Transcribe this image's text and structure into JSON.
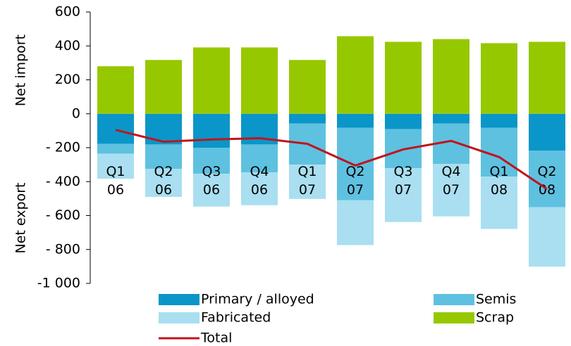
{
  "chart_data": {
    "type": "stacked_bar_line",
    "y_label_top": "Net import",
    "y_label_bottom": "Net export",
    "categories": [
      "Q1 06",
      "Q2 06",
      "Q3 06",
      "Q4 06",
      "Q1 07",
      "Q2 07",
      "Q3 07",
      "Q4 07",
      "Q1 08",
      "Q2 08"
    ],
    "series": [
      {
        "name": "Primary / alloyed",
        "color": "#0a96c8",
        "kind": "bar",
        "values": [
          -177,
          -181,
          -200,
          -181,
          -58,
          -82,
          -91,
          -58,
          -82,
          -218
        ]
      },
      {
        "name": "Semis",
        "color": "#5ec1e0",
        "kind": "bar",
        "values": [
          -58,
          -144,
          -154,
          -165,
          -242,
          -428,
          -230,
          -238,
          -288,
          -333
        ]
      },
      {
        "name": "Fabricated",
        "color": "#a9dff0",
        "kind": "bar",
        "values": [
          -148,
          -165,
          -193,
          -193,
          -202,
          -264,
          -317,
          -309,
          -309,
          -350
        ]
      },
      {
        "name": "Scrap",
        "color": "#96c800",
        "kind": "bar",
        "values": [
          280,
          317,
          391,
          391,
          317,
          457,
          424,
          440,
          416,
          424
        ]
      },
      {
        "name": "Total",
        "color": "#c0141c",
        "kind": "line",
        "values": [
          -95,
          -165,
          -152,
          -144,
          -177,
          -305,
          -210,
          -160,
          -255,
          -444
        ]
      }
    ],
    "ylim": [
      -1000,
      600
    ],
    "yticks": [
      600,
      400,
      200,
      0,
      {
        "value": -200,
        "label": "- 200"
      },
      {
        "value": -400,
        "label": "- 400"
      },
      {
        "value": -600,
        "label": "- 600"
      },
      {
        "value": -800,
        "label": "- 800"
      },
      {
        "value": -1000,
        "label": "-1 000"
      }
    ],
    "grid": false
  }
}
